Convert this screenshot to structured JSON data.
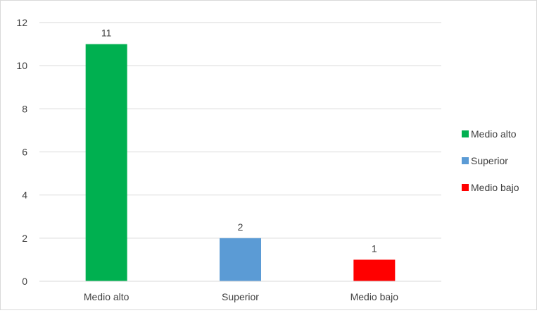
{
  "chart_data": {
    "type": "bar",
    "categories": [
      "Medio alto",
      "Superior",
      "Medio bajo"
    ],
    "values": [
      11,
      2,
      1
    ],
    "colors": [
      "#00b050",
      "#5b9bd5",
      "#ff0000"
    ],
    "ylim": [
      0,
      12
    ],
    "yticks": [
      0,
      2,
      4,
      6,
      8,
      10,
      12
    ],
    "grid": true,
    "legend_position": "right",
    "legend": [
      {
        "label": "Medio alto",
        "color": "#00b050"
      },
      {
        "label": "Superior",
        "color": "#5b9bd5"
      },
      {
        "label": "Medio bajo",
        "color": "#ff0000"
      }
    ],
    "title": "",
    "xlabel": "",
    "ylabel": ""
  }
}
